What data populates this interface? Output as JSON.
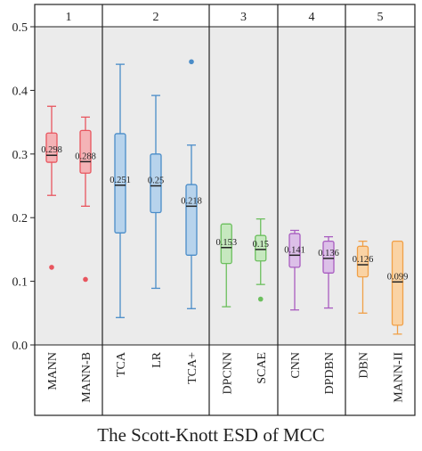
{
  "chart_data": {
    "type": "box",
    "title": "The Scott-Knott ESD of  MCC",
    "xlabel": "",
    "ylabel": "",
    "ylim": [
      0.0,
      0.5
    ],
    "yticks": [
      "0.0",
      "0.1",
      "0.2",
      "0.3",
      "0.4",
      "0.5"
    ],
    "grid": false,
    "groups": [
      {
        "rank": "1",
        "start": 0,
        "count": 2
      },
      {
        "rank": "2",
        "start": 2,
        "count": 3
      },
      {
        "rank": "3",
        "start": 5,
        "count": 2
      },
      {
        "rank": "4",
        "start": 7,
        "count": 2
      },
      {
        "rank": "5",
        "start": 9,
        "count": 2
      }
    ],
    "series": [
      {
        "category": "MANN",
        "min": 0.235,
        "q1": 0.287,
        "median": 0.298,
        "q3": 0.333,
        "max": 0.375,
        "outliers": [
          0.122
        ],
        "median_label": "0.298",
        "color": "#e8555e",
        "fill": "#f4b3b6"
      },
      {
        "category": "MANN-B",
        "min": 0.218,
        "q1": 0.27,
        "median": 0.288,
        "q3": 0.337,
        "max": 0.358,
        "outliers": [
          0.103
        ],
        "median_label": "0.288",
        "color": "#e8555e",
        "fill": "#f4b3b6"
      },
      {
        "category": "TCA",
        "min": 0.043,
        "q1": 0.176,
        "median": 0.251,
        "q3": 0.332,
        "max": 0.441,
        "outliers": [],
        "median_label": "0.251",
        "color": "#4a8cc8",
        "fill": "#b7d3ec"
      },
      {
        "category": "LR",
        "min": 0.089,
        "q1": 0.208,
        "median": 0.25,
        "q3": 0.3,
        "max": 0.392,
        "outliers": [],
        "median_label": "0.25",
        "color": "#4a8cc8",
        "fill": "#b7d3ec"
      },
      {
        "category": "TCA+",
        "min": 0.057,
        "q1": 0.141,
        "median": 0.218,
        "q3": 0.252,
        "max": 0.314,
        "outliers": [
          0.445
        ],
        "median_label": "0.218",
        "color": "#4a8cc8",
        "fill": "#b7d3ec"
      },
      {
        "category": "DPCNN",
        "min": 0.06,
        "q1": 0.128,
        "median": 0.153,
        "q3": 0.19,
        "max": 0.19,
        "outliers": [],
        "median_label": "0.153",
        "color": "#6cbf5e",
        "fill": "#c6e8bf"
      },
      {
        "category": "SCAE",
        "min": 0.095,
        "q1": 0.132,
        "median": 0.15,
        "q3": 0.172,
        "max": 0.198,
        "outliers": [
          0.072
        ],
        "median_label": "0.15",
        "color": "#6cbf5e",
        "fill": "#c6e8bf"
      },
      {
        "category": "CNN",
        "min": 0.055,
        "q1": 0.122,
        "median": 0.141,
        "q3": 0.175,
        "max": 0.18,
        "outliers": [],
        "median_label": "0.141",
        "color": "#a85cc0",
        "fill": "#dcc0e8"
      },
      {
        "category": "DPDBN",
        "min": 0.058,
        "q1": 0.113,
        "median": 0.136,
        "q3": 0.163,
        "max": 0.17,
        "outliers": [],
        "median_label": "0.136",
        "color": "#a85cc0",
        "fill": "#dcc0e8"
      },
      {
        "category": "DBN",
        "min": 0.05,
        "q1": 0.107,
        "median": 0.126,
        "q3": 0.155,
        "max": 0.163,
        "outliers": [],
        "median_label": "0.126",
        "color": "#f0a048",
        "fill": "#fad3a4"
      },
      {
        "category": "MANN-II",
        "min": 0.017,
        "q1": 0.031,
        "median": 0.099,
        "q3": 0.163,
        "max": 0.163,
        "outliers": [],
        "median_label": "0.099",
        "color": "#f0a048",
        "fill": "#fad3a4"
      }
    ]
  }
}
